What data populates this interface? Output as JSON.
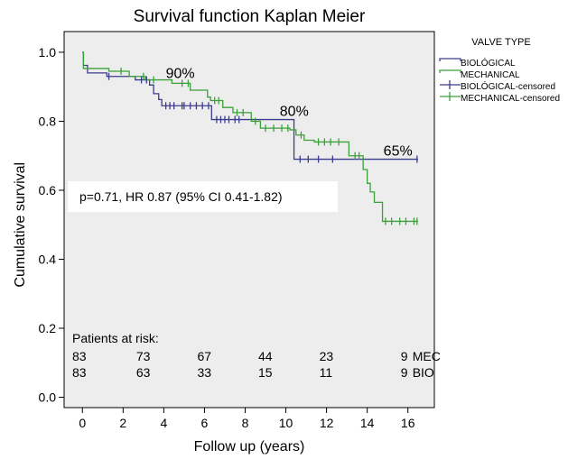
{
  "chart_data": {
    "type": "line",
    "title": "Survival function Kaplan Meier",
    "xlabel": "Follow up (years)",
    "ylabel": "Cumulative survival",
    "xlim": [
      -0.9,
      17.3
    ],
    "ylim": [
      -0.03,
      1.06
    ],
    "xticks": [
      0,
      2,
      4,
      6,
      8,
      10,
      12,
      14,
      16
    ],
    "yticks": [
      0.0,
      0.2,
      0.4,
      0.6,
      0.8,
      1.0
    ],
    "xtick_labels": [
      "0",
      "2",
      "4",
      "6",
      "8",
      "10",
      "12",
      "14",
      "16"
    ],
    "ytick_labels": [
      "0.0",
      "0.2",
      "0.4",
      "0.6",
      "0.8",
      "1.0"
    ],
    "grid": false,
    "legend_position": "outside-right",
    "legend": {
      "title": "VALVE TYPE",
      "entries": [
        "BIOLÓGICAL",
        "MECHANICAL",
        "BIOLÓGICAL-censored",
        "MECHANICAL-censored"
      ]
    },
    "series": [
      {
        "name": "BIOLÓGICAL",
        "color": "#3c3c8c",
        "steps": [
          [
            0,
            1.0
          ],
          [
            0.05,
            0.962
          ],
          [
            0.25,
            0.94
          ],
          [
            1.2,
            0.93
          ],
          [
            2.6,
            0.92
          ],
          [
            3.3,
            0.905
          ],
          [
            3.5,
            0.88
          ],
          [
            3.75,
            0.863
          ],
          [
            3.9,
            0.845
          ],
          [
            6.35,
            0.805
          ],
          [
            10.4,
            0.69
          ],
          [
            16.5,
            0.69
          ]
        ],
        "censored": [
          1.3,
          2.9,
          3.15,
          4.1,
          4.3,
          4.5,
          4.9,
          5.0,
          5.3,
          5.6,
          5.9,
          6.2,
          6.6,
          6.8,
          7.0,
          7.2,
          7.5,
          7.7,
          10.7,
          11.1,
          11.6,
          12.3,
          16.45
        ]
      },
      {
        "name": "MECHANICAL",
        "color": "#3ca03c",
        "steps": [
          [
            0,
            1.0
          ],
          [
            0.05,
            0.953
          ],
          [
            1.3,
            0.945
          ],
          [
            2.3,
            0.93
          ],
          [
            3.1,
            0.92
          ],
          [
            4.4,
            0.91
          ],
          [
            5.3,
            0.89
          ],
          [
            6.15,
            0.87
          ],
          [
            6.3,
            0.86
          ],
          [
            6.9,
            0.84
          ],
          [
            7.4,
            0.825
          ],
          [
            8.3,
            0.8
          ],
          [
            8.75,
            0.78
          ],
          [
            10.2,
            0.775
          ],
          [
            10.5,
            0.76
          ],
          [
            10.9,
            0.745
          ],
          [
            11.4,
            0.74
          ],
          [
            13.1,
            0.7
          ],
          [
            13.8,
            0.66
          ],
          [
            14.0,
            0.62
          ],
          [
            14.15,
            0.595
          ],
          [
            14.35,
            0.565
          ],
          [
            14.75,
            0.51
          ],
          [
            16.5,
            0.51
          ]
        ],
        "censored": [
          1.9,
          3.0,
          3.5,
          4.9,
          5.2,
          6.5,
          6.7,
          7.6,
          7.9,
          8.5,
          9.0,
          9.4,
          9.8,
          10.1,
          10.75,
          11.6,
          11.9,
          12.2,
          12.6,
          13.4,
          13.6,
          14.9,
          15.2,
          15.6,
          15.9,
          16.3,
          16.45
        ]
      }
    ],
    "annotations": [
      {
        "text": "90%",
        "x": 4.1,
        "y": 0.925
      },
      {
        "text": "80%",
        "x": 9.7,
        "y": 0.815
      },
      {
        "text": "65%",
        "x": 14.8,
        "y": 0.7
      }
    ],
    "stats_text": "p=0.71, HR 0.87 (95% CI 0.41-1.82)",
    "risk_table": {
      "title": "Patients at risk:",
      "times": [
        0,
        3,
        6,
        9,
        12,
        16
      ],
      "rows": [
        {
          "values": [
            "83",
            "73",
            "67",
            "44",
            "23",
            "9"
          ],
          "label": "MEC"
        },
        {
          "values": [
            "83",
            "63",
            "33",
            "15",
            "11",
            "9"
          ],
          "label": "BIO"
        }
      ]
    }
  }
}
